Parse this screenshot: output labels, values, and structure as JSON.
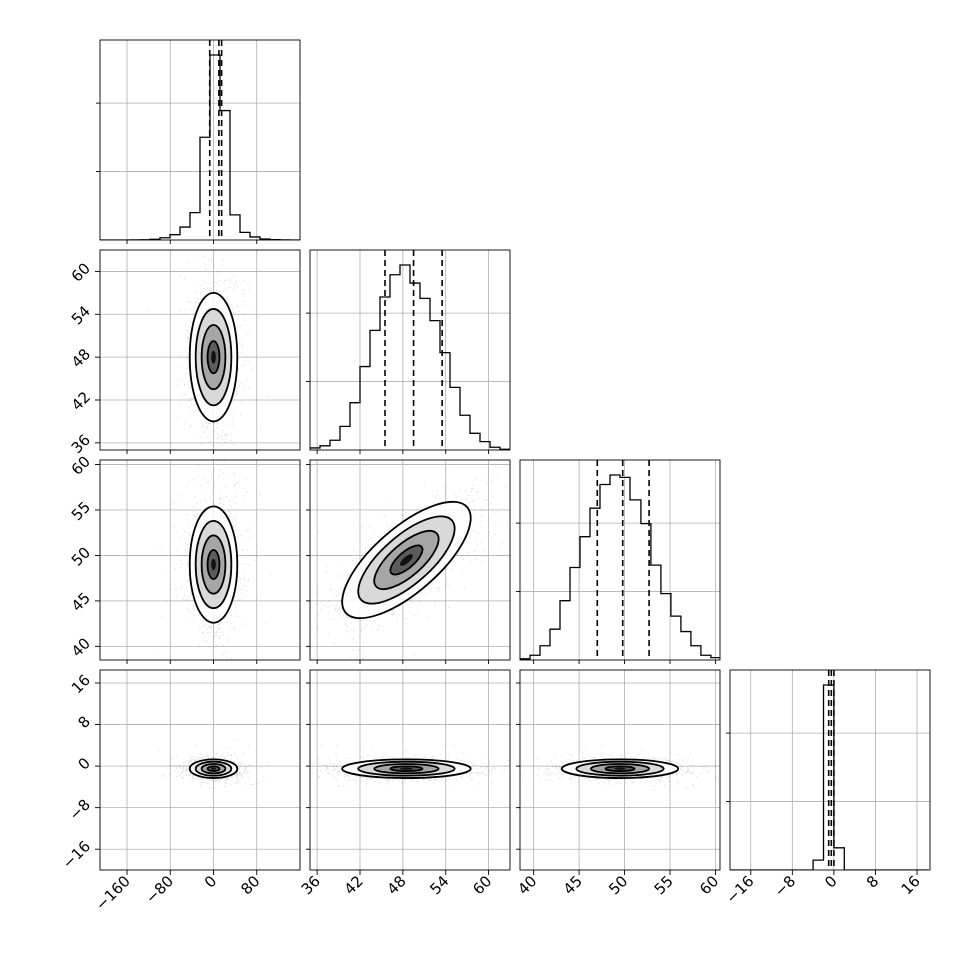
{
  "chart_data": {
    "type": "corner",
    "parameters": 4,
    "axes_ticks": [
      {
        "ticks": [
          -160,
          -80,
          0,
          80
        ],
        "labels": [
          "−160",
          "−80",
          "0",
          "80"
        ],
        "lim": [
          -210,
          160
        ]
      },
      {
        "ticks": [
          36,
          42,
          48,
          54,
          60
        ],
        "labels": [
          "36",
          "42",
          "48",
          "54",
          "60"
        ],
        "lim": [
          35,
          63
        ]
      },
      {
        "ticks": [
          40,
          45,
          50,
          55,
          60
        ],
        "labels": [
          "40",
          "45",
          "50",
          "55",
          "60"
        ],
        "lim": [
          38.5,
          60.5
        ]
      },
      {
        "ticks": [
          -16,
          -8,
          0,
          8,
          16
        ],
        "labels": [
          "−16",
          "−8",
          "0",
          "8",
          "16"
        ],
        "lim": [
          -20,
          18.5
        ]
      }
    ],
    "diagonal_histograms": [
      {
        "param_index": 0,
        "quantiles": [
          -7,
          10,
          15
        ],
        "bin_edges": [
          -210,
          -191.5,
          -173,
          -154.5,
          -136,
          -117.5,
          -99,
          -80.5,
          -62,
          -43.5,
          -25,
          -6.5,
          12,
          30.5,
          49,
          67.5,
          86,
          104.5,
          123,
          141.5,
          160
        ],
        "counts": [
          0,
          0,
          0,
          1,
          3,
          10,
          30,
          70,
          170,
          360,
          1350,
          2430,
          1700,
          330,
          100,
          40,
          12,
          4,
          1,
          0
        ]
      },
      {
        "param_index": 1,
        "quantiles": [
          45.5,
          49.5,
          53.5
        ],
        "bin_edges": [
          35,
          36.4,
          37.8,
          39.2,
          40.6,
          42,
          43.4,
          44.8,
          46.2,
          47.6,
          49,
          50.4,
          51.8,
          53.2,
          54.6,
          56,
          57.4,
          58.8,
          60.2,
          61.6,
          63
        ],
        "counts": [
          15,
          30,
          70,
          170,
          340,
          600,
          860,
          1100,
          1260,
          1330,
          1200,
          1090,
          930,
          700,
          450,
          250,
          120,
          60,
          20,
          5
        ]
      },
      {
        "param_index": 2,
        "quantiles": [
          47,
          49.8,
          52.7
        ],
        "bin_edges": [
          38.5,
          39.6,
          40.7,
          41.8,
          42.9,
          44,
          45.1,
          46.2,
          47.3,
          48.4,
          49.5,
          50.6,
          51.8,
          52.9,
          54,
          55.1,
          56.2,
          57.3,
          58.4,
          59.5,
          60.5
        ],
        "counts": [
          10,
          40,
          120,
          260,
          500,
          780,
          1040,
          1280,
          1480,
          1560,
          1540,
          1350,
          1150,
          800,
          560,
          370,
          240,
          120,
          40,
          20
        ]
      },
      {
        "param_index": 3,
        "quantiles": [
          -1.0,
          -0.5,
          0.0
        ],
        "bin_edges": [
          -20,
          -18,
          -16,
          -14,
          -12,
          -10,
          -8,
          -6,
          -4,
          -2,
          0,
          2,
          4,
          6,
          8,
          10,
          12,
          14,
          16,
          18
        ],
        "counts": [
          0,
          0,
          0,
          0,
          0,
          0,
          0,
          0,
          400,
          7500,
          900,
          0,
          0,
          0,
          0,
          0,
          0,
          0,
          0
        ]
      }
    ],
    "pair_densities": [
      {
        "x_param": 0,
        "y_param": 1,
        "center": [
          0,
          48
        ],
        "sigma": [
          22,
          4.5
        ],
        "rho": 0.0
      },
      {
        "x_param": 0,
        "y_param": 2,
        "center": [
          0,
          49
        ],
        "sigma": [
          22,
          3.2
        ],
        "rho": 0.0
      },
      {
        "x_param": 1,
        "y_param": 2,
        "center": [
          48.5,
          49.5
        ],
        "sigma": [
          4.5,
          3.2
        ],
        "rho": 0.72
      },
      {
        "x_param": 0,
        "y_param": 3,
        "center": [
          0,
          -0.5
        ],
        "sigma": [
          22,
          0.9
        ],
        "rho": 0.0
      },
      {
        "x_param": 1,
        "y_param": 3,
        "center": [
          48.5,
          -0.5
        ],
        "sigma": [
          4.5,
          0.9
        ],
        "rho": 0.0
      },
      {
        "x_param": 2,
        "y_param": 3,
        "center": [
          49.5,
          -0.5
        ],
        "sigma": [
          3.2,
          0.9
        ],
        "rho": 0.0
      }
    ],
    "grid": true,
    "colors": {
      "line": "#000000",
      "grid": "#b0b0b0",
      "scatter": "#000000",
      "quantile_line": "#000000"
    }
  }
}
